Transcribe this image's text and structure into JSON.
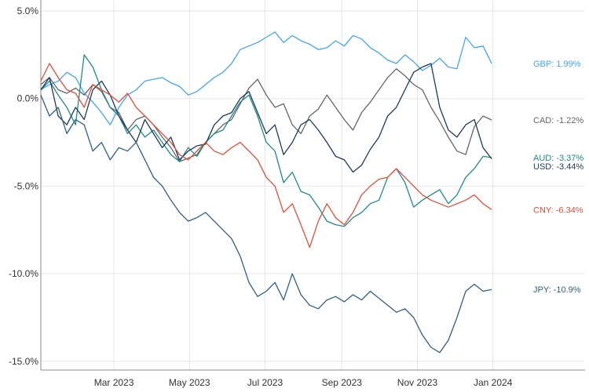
{
  "chart_data": {
    "type": "line",
    "title": "",
    "xlabel": "",
    "ylabel": "",
    "x_range": [
      "2023-01-01",
      "2024-01-31"
    ],
    "ylim": [
      -15.5,
      5.0
    ],
    "y_ticks": [
      5.0,
      0.0,
      -5.0,
      -10.0,
      -15.0
    ],
    "y_tick_labels": [
      "5.0%",
      "0.0%",
      "-5.0%",
      "-10.0%",
      "-15.0%"
    ],
    "x_ticks": [
      "2023-03-01",
      "2023-05-01",
      "2023-07-01",
      "2023-09-01",
      "2023-11-01",
      "2024-01-01"
    ],
    "x_tick_labels": [
      "Mar 2023",
      "May 2023",
      "Jul 2023",
      "Sep 2023",
      "Nov 2023",
      "Jan 2024"
    ],
    "grid": true,
    "legend": "labels at line ends",
    "series": [
      {
        "name": "GBP",
        "end_label": "GBP: 1.99%",
        "color": "#42a5f5",
        "x": [
          "2023-01-01",
          "2023-01-08",
          "2023-01-15",
          "2023-01-22",
          "2023-01-29",
          "2023-02-05",
          "2023-02-12",
          "2023-02-19",
          "2023-02-26",
          "2023-03-05",
          "2023-03-12",
          "2023-03-19",
          "2023-03-26",
          "2023-04-02",
          "2023-04-09",
          "2023-04-16",
          "2023-04-23",
          "2023-04-30",
          "2023-05-07",
          "2023-05-14",
          "2023-05-21",
          "2023-05-28",
          "2023-06-04",
          "2023-06-11",
          "2023-06-18",
          "2023-06-25",
          "2023-07-02",
          "2023-07-09",
          "2023-07-16",
          "2023-07-23",
          "2023-07-30",
          "2023-08-06",
          "2023-08-13",
          "2023-08-20",
          "2023-08-27",
          "2023-09-03",
          "2023-09-10",
          "2023-09-17",
          "2023-09-24",
          "2023-10-01",
          "2023-10-08",
          "2023-10-15",
          "2023-10-22",
          "2023-10-29",
          "2023-11-05",
          "2023-11-12",
          "2023-11-19",
          "2023-11-26",
          "2023-12-03",
          "2023-12-10",
          "2023-12-17",
          "2023-12-24",
          "2023-12-31"
        ],
        "values": [
          0.5,
          0.8,
          1.0,
          1.5,
          1.2,
          0.3,
          -0.2,
          -0.8,
          -1.5,
          -0.5,
          0.2,
          0.5,
          1.0,
          1.1,
          1.2,
          0.9,
          0.7,
          0.2,
          0.4,
          0.8,
          1.2,
          1.5,
          2.0,
          2.8,
          3.0,
          3.2,
          3.5,
          3.8,
          3.2,
          3.6,
          3.3,
          3.1,
          2.8,
          2.9,
          3.3,
          3.0,
          3.6,
          3.4,
          2.9,
          2.6,
          2.2,
          2.0,
          2.5,
          2.1,
          1.6,
          1.9,
          2.3,
          1.8,
          1.7,
          3.5,
          2.9,
          3.0,
          1.99
        ]
      },
      {
        "name": "CAD",
        "end_label": "CAD: -1.22%",
        "color": "#666666",
        "x": [
          "2023-01-01",
          "2023-01-08",
          "2023-01-15",
          "2023-01-22",
          "2023-01-29",
          "2023-02-05",
          "2023-02-12",
          "2023-02-19",
          "2023-02-26",
          "2023-03-05",
          "2023-03-12",
          "2023-03-19",
          "2023-03-26",
          "2023-04-02",
          "2023-04-09",
          "2023-04-16",
          "2023-04-23",
          "2023-04-30",
          "2023-05-07",
          "2023-05-14",
          "2023-05-21",
          "2023-05-28",
          "2023-06-04",
          "2023-06-11",
          "2023-06-18",
          "2023-06-25",
          "2023-07-02",
          "2023-07-09",
          "2023-07-16",
          "2023-07-23",
          "2023-07-30",
          "2023-08-06",
          "2023-08-13",
          "2023-08-20",
          "2023-08-27",
          "2023-09-03",
          "2023-09-10",
          "2023-09-17",
          "2023-09-24",
          "2023-10-01",
          "2023-10-08",
          "2023-10-15",
          "2023-10-22",
          "2023-10-29",
          "2023-11-05",
          "2023-11-12",
          "2023-11-19",
          "2023-11-26",
          "2023-12-03",
          "2023-12-10",
          "2023-12-17",
          "2023-12-24",
          "2023-12-31"
        ],
        "values": [
          0.8,
          1.2,
          0.5,
          0.3,
          0.6,
          0.2,
          0.8,
          0.4,
          -0.5,
          -0.8,
          -1.8,
          -1.2,
          -1.0,
          -1.5,
          -2.2,
          -2.8,
          -3.6,
          -3.4,
          -3.2,
          -2.5,
          -2.0,
          -1.5,
          -1.2,
          -0.3,
          0.6,
          1.1,
          0.2,
          -0.5,
          -0.3,
          -1.5,
          -2.0,
          -1.0,
          -0.6,
          0.2,
          -0.5,
          -1.2,
          -1.8,
          -0.8,
          -0.2,
          0.5,
          1.2,
          1.7,
          1.3,
          0.8,
          0.5,
          -0.5,
          -1.3,
          -2.2,
          -3.0,
          -3.2,
          -1.6,
          -1.0,
          -1.22
        ]
      },
      {
        "name": "AUD",
        "end_label": "AUD: -3.37%",
        "color": "#1f8a8a",
        "x": [
          "2023-01-01",
          "2023-01-08",
          "2023-01-15",
          "2023-01-22",
          "2023-01-29",
          "2023-02-05",
          "2023-02-12",
          "2023-02-19",
          "2023-02-26",
          "2023-03-05",
          "2023-03-12",
          "2023-03-19",
          "2023-03-26",
          "2023-04-02",
          "2023-04-09",
          "2023-04-16",
          "2023-04-23",
          "2023-04-30",
          "2023-05-07",
          "2023-05-14",
          "2023-05-21",
          "2023-05-28",
          "2023-06-04",
          "2023-06-11",
          "2023-06-18",
          "2023-06-25",
          "2023-07-02",
          "2023-07-09",
          "2023-07-16",
          "2023-07-23",
          "2023-07-30",
          "2023-08-06",
          "2023-08-13",
          "2023-08-20",
          "2023-08-27",
          "2023-09-03",
          "2023-09-10",
          "2023-09-17",
          "2023-09-24",
          "2023-10-01",
          "2023-10-08",
          "2023-10-15",
          "2023-10-22",
          "2023-10-29",
          "2023-11-05",
          "2023-11-12",
          "2023-11-19",
          "2023-11-26",
          "2023-12-03",
          "2023-12-10",
          "2023-12-17",
          "2023-12-24",
          "2023-12-31"
        ],
        "values": [
          0.5,
          1.0,
          0.2,
          -0.5,
          -1.5,
          2.5,
          1.8,
          0.5,
          -0.5,
          -1.0,
          -2.0,
          -1.5,
          -2.2,
          -1.8,
          -2.5,
          -3.2,
          -3.6,
          -2.8,
          -3.3,
          -2.5,
          -2.0,
          -1.8,
          -1.0,
          -0.2,
          0.2,
          -1.0,
          -2.5,
          -3.0,
          -4.8,
          -4.2,
          -5.3,
          -5.5,
          -6.2,
          -7.0,
          -7.2,
          -7.3,
          -6.8,
          -6.5,
          -6.0,
          -5.8,
          -4.5,
          -4.0,
          -4.8,
          -6.2,
          -5.8,
          -5.5,
          -5.2,
          -6.0,
          -5.5,
          -4.5,
          -4.0,
          -3.3,
          -3.37
        ]
      },
      {
        "name": "USD",
        "end_label": "USD: -3.44%",
        "color": "#1e3a5f",
        "x": [
          "2023-01-01",
          "2023-01-08",
          "2023-01-15",
          "2023-01-22",
          "2023-01-29",
          "2023-02-05",
          "2023-02-12",
          "2023-02-19",
          "2023-02-26",
          "2023-03-05",
          "2023-03-12",
          "2023-03-19",
          "2023-03-26",
          "2023-04-02",
          "2023-04-09",
          "2023-04-16",
          "2023-04-23",
          "2023-04-30",
          "2023-05-07",
          "2023-05-14",
          "2023-05-21",
          "2023-05-28",
          "2023-06-04",
          "2023-06-11",
          "2023-06-18",
          "2023-06-25",
          "2023-07-02",
          "2023-07-09",
          "2023-07-16",
          "2023-07-23",
          "2023-07-30",
          "2023-08-06",
          "2023-08-13",
          "2023-08-20",
          "2023-08-27",
          "2023-09-03",
          "2023-09-10",
          "2023-09-17",
          "2023-09-24",
          "2023-10-01",
          "2023-10-08",
          "2023-10-15",
          "2023-10-22",
          "2023-10-29",
          "2023-11-05",
          "2023-11-12",
          "2023-11-19",
          "2023-11-26",
          "2023-12-03",
          "2023-12-10",
          "2023-12-17",
          "2023-12-24",
          "2023-12-31"
        ],
        "values": [
          0.5,
          1.2,
          -1.0,
          -1.5,
          -0.5,
          -1.2,
          0.5,
          1.0,
          0.2,
          -1.0,
          -1.8,
          -2.5,
          -1.2,
          -2.0,
          -2.8,
          -2.2,
          -3.5,
          -3.0,
          -2.7,
          -2.6,
          -1.5,
          -1.0,
          -0.8,
          0.0,
          0.4,
          -0.8,
          -2.0,
          -1.5,
          -3.2,
          -2.5,
          -1.5,
          -1.2,
          -1.8,
          -2.5,
          -3.3,
          -3.5,
          -4.2,
          -3.8,
          -2.9,
          -2.2,
          -1.0,
          -0.5,
          0.5,
          1.5,
          1.8,
          2.0,
          -0.5,
          -1.8,
          -2.2,
          -1.5,
          -1.2,
          -2.8,
          -3.44
        ]
      },
      {
        "name": "CNY",
        "end_label": "CNY: -6.34%",
        "color": "#e04e39",
        "x": [
          "2023-01-01",
          "2023-01-08",
          "2023-01-15",
          "2023-01-22",
          "2023-01-29",
          "2023-02-05",
          "2023-02-12",
          "2023-02-19",
          "2023-02-26",
          "2023-03-05",
          "2023-03-12",
          "2023-03-19",
          "2023-03-26",
          "2023-04-02",
          "2023-04-09",
          "2023-04-16",
          "2023-04-23",
          "2023-04-30",
          "2023-05-07",
          "2023-05-14",
          "2023-05-21",
          "2023-05-28",
          "2023-06-04",
          "2023-06-11",
          "2023-06-18",
          "2023-06-25",
          "2023-07-02",
          "2023-07-09",
          "2023-07-16",
          "2023-07-23",
          "2023-07-30",
          "2023-08-06",
          "2023-08-13",
          "2023-08-20",
          "2023-08-27",
          "2023-09-03",
          "2023-09-10",
          "2023-09-17",
          "2023-09-24",
          "2023-10-01",
          "2023-10-08",
          "2023-10-15",
          "2023-10-22",
          "2023-10-29",
          "2023-11-05",
          "2023-11-12",
          "2023-11-19",
          "2023-11-26",
          "2023-12-03",
          "2023-12-10",
          "2023-12-17",
          "2023-12-24",
          "2023-12-31"
        ],
        "values": [
          1.0,
          2.0,
          1.2,
          0.5,
          0.3,
          -0.5,
          0.8,
          0.5,
          0.2,
          -0.2,
          0.3,
          -0.5,
          -1.0,
          -1.5,
          -2.0,
          -2.5,
          -3.2,
          -3.5,
          -3.0,
          -2.5,
          -3.0,
          -3.2,
          -2.8,
          -2.5,
          -3.0,
          -3.5,
          -4.5,
          -5.0,
          -6.5,
          -6.0,
          -7.2,
          -8.5,
          -7.0,
          -6.0,
          -6.8,
          -7.2,
          -6.5,
          -5.5,
          -5.0,
          -4.6,
          -4.5,
          -4.0,
          -4.5,
          -5.0,
          -5.5,
          -5.8,
          -6.0,
          -6.2,
          -6.0,
          -5.8,
          -5.5,
          -6.0,
          -6.34
        ]
      },
      {
        "name": "JPY",
        "end_label": "JPY: -10.9%",
        "color": "#2f5f8a",
        "x": [
          "2023-01-01",
          "2023-01-08",
          "2023-01-15",
          "2023-01-22",
          "2023-01-29",
          "2023-02-05",
          "2023-02-12",
          "2023-02-19",
          "2023-02-26",
          "2023-03-05",
          "2023-03-12",
          "2023-03-19",
          "2023-03-26",
          "2023-04-02",
          "2023-04-09",
          "2023-04-16",
          "2023-04-23",
          "2023-04-30",
          "2023-05-07",
          "2023-05-14",
          "2023-05-21",
          "2023-05-28",
          "2023-06-04",
          "2023-06-11",
          "2023-06-18",
          "2023-06-25",
          "2023-07-02",
          "2023-07-09",
          "2023-07-16",
          "2023-07-23",
          "2023-07-30",
          "2023-08-06",
          "2023-08-13",
          "2023-08-20",
          "2023-08-27",
          "2023-09-03",
          "2023-09-10",
          "2023-09-17",
          "2023-09-24",
          "2023-10-01",
          "2023-10-08",
          "2023-10-15",
          "2023-10-22",
          "2023-10-29",
          "2023-11-05",
          "2023-11-12",
          "2023-11-19",
          "2023-11-26",
          "2023-12-03",
          "2023-12-10",
          "2023-12-17",
          "2023-12-24",
          "2023-12-31"
        ],
        "values": [
          0.2,
          -1.0,
          -0.5,
          -2.0,
          -1.2,
          -1.5,
          -3.0,
          -2.5,
          -3.5,
          -2.8,
          -3.0,
          -2.5,
          -3.5,
          -4.5,
          -5.0,
          -5.8,
          -6.5,
          -7.0,
          -6.8,
          -6.5,
          -7.0,
          -7.5,
          -8.0,
          -9.0,
          -10.5,
          -11.3,
          -11.0,
          -10.5,
          -11.5,
          -10.0,
          -11.2,
          -11.8,
          -12.0,
          -11.5,
          -11.3,
          -11.6,
          -11.2,
          -11.5,
          -11.0,
          -11.4,
          -11.8,
          -12.2,
          -12.0,
          -12.5,
          -13.5,
          -14.2,
          -14.5,
          -13.8,
          -12.5,
          -11.0,
          -10.6,
          -11.0,
          -10.9
        ]
      }
    ]
  }
}
